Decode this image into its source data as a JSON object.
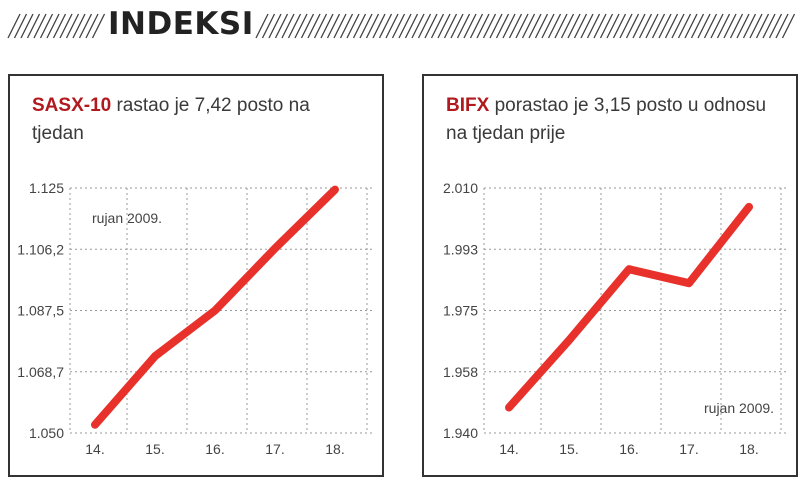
{
  "header": {
    "title": "INDEKSI"
  },
  "panels": [
    {
      "index_name": "SASX-10",
      "caption_rest": "rastao je 7,42 posto na tjedan",
      "note": "rujan 2009.",
      "note_pos": "top-left"
    },
    {
      "index_name": "BIFX",
      "caption_rest": "porastao je 3,15 posto u odnosu na tjedan prije",
      "note": "rujan 2009.",
      "note_pos": "bottom-right"
    }
  ],
  "chart_data": [
    {
      "type": "line",
      "title": "SASX-10",
      "categories": [
        "14.",
        "15.",
        "16.",
        "17.",
        "18."
      ],
      "values": [
        1052.5,
        1073.5,
        1087.5,
        1106.5,
        1124.5
      ],
      "y_ticks": [
        "1.125",
        "1.106,2",
        "1.087,5",
        "1.068,7",
        "1.050"
      ],
      "ylim": [
        1050,
        1125
      ],
      "grid": true,
      "color": "#e8312b"
    },
    {
      "type": "line",
      "title": "BIFX",
      "categories": [
        "14.",
        "15.",
        "16.",
        "17.",
        "18."
      ],
      "values": [
        1947.3,
        1966.5,
        1986.8,
        1982.8,
        2004.6
      ],
      "y_ticks": [
        "2.010",
        "1.993",
        "1.975",
        "1.958",
        "1.940"
      ],
      "ylim": [
        1940,
        2010
      ],
      "grid": true,
      "color": "#e8312b"
    }
  ]
}
